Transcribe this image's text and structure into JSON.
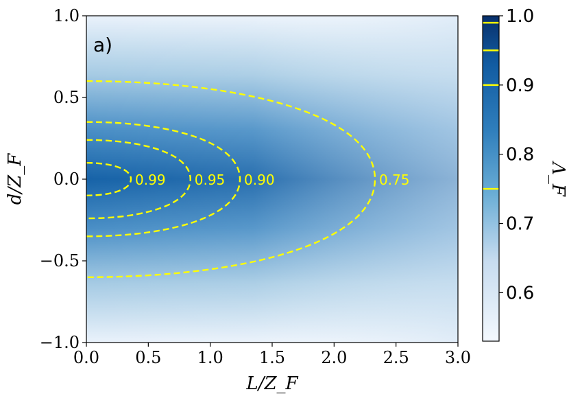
{
  "chart_data": {
    "type": "heatmap",
    "panel_label": "a)",
    "xlabel": "L/Z_F",
    "ylabel": "d/Z_F",
    "xlim": [
      0.0,
      3.0
    ],
    "ylim": [
      -1.0,
      1.0
    ],
    "x_ticks": [
      "0.0",
      "0.5",
      "1.0",
      "1.5",
      "2.0",
      "2.5",
      "3.0"
    ],
    "x_tick_values": [
      0.0,
      0.5,
      1.0,
      1.5,
      2.0,
      2.5,
      3.0
    ],
    "y_ticks": [
      "−1.0",
      "−0.5",
      "0.0",
      "0.5",
      "1.0"
    ],
    "y_tick_values": [
      -1.0,
      -0.5,
      0.0,
      0.5,
      1.0
    ],
    "colorbar": {
      "label": "Λ_F",
      "range": [
        0.53,
        1.0
      ],
      "ticks": [
        "0.6",
        "0.7",
        "0.8",
        "0.9",
        "1.0"
      ],
      "tick_values": [
        0.6,
        0.7,
        0.8,
        0.9,
        1.0
      ],
      "contour_marks": [
        0.75,
        0.9,
        0.95,
        0.99
      ],
      "colormap": "Blues"
    },
    "contours": [
      {
        "level": 0.99,
        "label": "0.99",
        "x_extent": 0.36,
        "d_halfwidth": 0.1
      },
      {
        "level": 0.95,
        "label": "0.95",
        "x_extent": 0.84,
        "d_halfwidth": 0.24
      },
      {
        "level": 0.9,
        "label": "0.90",
        "x_extent": 1.24,
        "d_halfwidth": 0.35
      },
      {
        "level": 0.75,
        "label": "0.75",
        "x_extent": 2.33,
        "d_halfwidth": 0.6
      }
    ],
    "contour_color": "#ffff00",
    "contour_style": "dashed"
  }
}
